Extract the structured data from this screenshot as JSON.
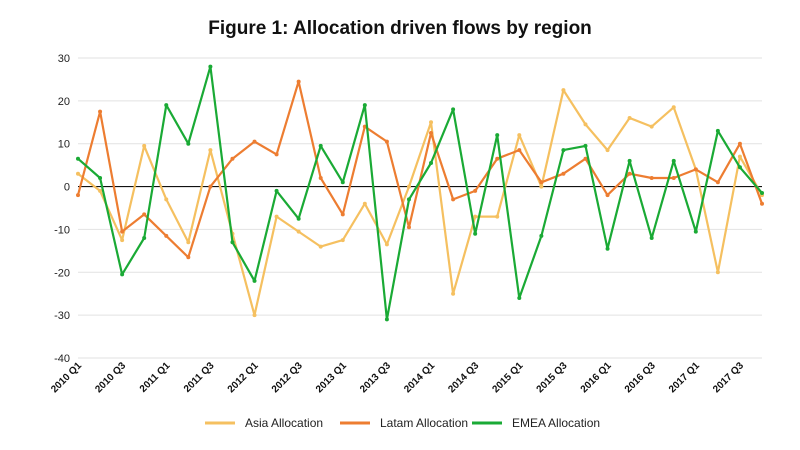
{
  "chart_data": {
    "type": "line",
    "title": "Figure 1: Allocation driven flows by region",
    "xlabel": "",
    "ylabel": "",
    "ylim": [
      -40,
      30
    ],
    "yticks": [
      30,
      20,
      10,
      0,
      -10,
      -20,
      -30,
      -40
    ],
    "grid": true,
    "legend_position": "bottom",
    "x": [
      "2010 Q1",
      "2010 Q2",
      "2010 Q3",
      "2010 Q4",
      "2011 Q1",
      "2011 Q2",
      "2011 Q3",
      "2011 Q4",
      "2012 Q1",
      "2012 Q2",
      "2012 Q3",
      "2012 Q4",
      "2013 Q1",
      "2013 Q2",
      "2013 Q3",
      "2013 Q4",
      "2014 Q1",
      "2014 Q2",
      "2014 Q3",
      "2014 Q4",
      "2015 Q1",
      "2015 Q2",
      "2015 Q3",
      "2015 Q4",
      "2016 Q1",
      "2016 Q2",
      "2016 Q3",
      "2016 Q4",
      "2017 Q1",
      "2017 Q2",
      "2017 Q3",
      "2017 Q4"
    ],
    "xtick_labels": [
      "2010 Q1",
      "2010 Q3",
      "2011 Q1",
      "2011 Q3",
      "2012 Q1",
      "2012 Q3",
      "2013 Q1",
      "2013 Q3",
      "2014 Q1",
      "2014 Q3",
      "2015 Q1",
      "2015 Q3",
      "2016 Q1",
      "2016 Q3",
      "2017 Q1",
      "2017 Q3"
    ],
    "series": [
      {
        "name": "Asia Allocation",
        "color": "#f5c060",
        "values": [
          3,
          -1,
          -12.5,
          9.5,
          -3,
          -13,
          8.5,
          -11,
          -30,
          -7,
          -10.5,
          -14,
          -12.5,
          -4,
          -13.5,
          0,
          15,
          -25,
          -7,
          -7,
          12,
          0,
          22.5,
          14.5,
          8.5,
          16,
          14,
          18.5,
          4,
          -20,
          7,
          -2
        ]
      },
      {
        "name": "Latam Allocation",
        "color": "#ed7d31",
        "values": [
          -2,
          17.5,
          -10.5,
          -6.5,
          -11.5,
          -16.5,
          0,
          6.5,
          10.5,
          7.5,
          24.5,
          2,
          -6.5,
          14,
          10.5,
          -9.5,
          12.5,
          -3,
          -1,
          6.5,
          8.5,
          1,
          3,
          6.5,
          -2,
          3,
          2,
          2,
          4,
          1,
          10,
          -4
        ]
      },
      {
        "name": "EMEA Allocation",
        "color": "#1aaa35",
        "values": [
          6.5,
          2,
          -20.5,
          -12,
          19,
          10,
          28,
          -13,
          -22,
          -1,
          -7.5,
          9.5,
          1,
          19,
          -31,
          -3,
          5.5,
          18,
          -11,
          12,
          -26,
          -11.5,
          8.5,
          9.5,
          -14.5,
          6,
          -12,
          6,
          -10.5,
          13,
          4.5,
          -1.5
        ]
      }
    ]
  }
}
